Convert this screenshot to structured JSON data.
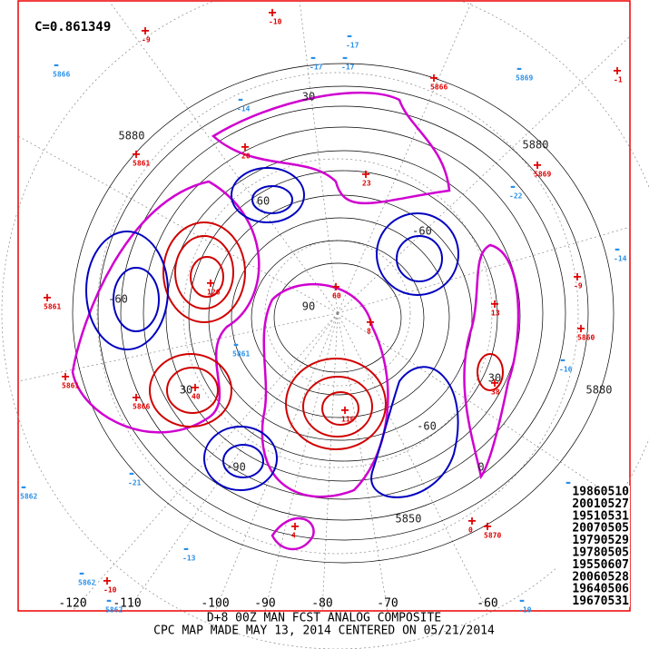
{
  "header": {
    "correlation": "C=0.861349"
  },
  "analog_dates": [
    "19860510",
    "20010527",
    "19510531",
    "20070505",
    "19790529",
    "19780505",
    "19550607",
    "20060528",
    "19640506",
    "19670531"
  ],
  "longitude_labels": [
    "-120",
    "-110",
    "-100",
    "-90",
    "-80",
    "-70",
    "-60"
  ],
  "contour_labels": [
    "5880",
    "5880",
    "5880",
    "5850",
    "30",
    "30",
    "60",
    "-60",
    "-60",
    "-60",
    "90",
    "-90",
    "0",
    "30"
  ],
  "anomaly_markers": [
    {
      "symbol": "+",
      "label": "-10"
    },
    {
      "symbol": "+",
      "label": "-9"
    },
    {
      "symbol": "-",
      "label": "5866"
    },
    {
      "symbol": "-",
      "label": "-17"
    },
    {
      "symbol": "-",
      "label": "-17"
    },
    {
      "symbol": "-",
      "label": "-17"
    },
    {
      "symbol": "+",
      "label": "5866"
    },
    {
      "symbol": "-",
      "label": "5869"
    },
    {
      "symbol": "+",
      "label": "-1"
    },
    {
      "symbol": "-",
      "label": "-14"
    },
    {
      "symbol": "+",
      "label": "5861"
    },
    {
      "symbol": "+",
      "label": "20"
    },
    {
      "symbol": "+",
      "label": "23"
    },
    {
      "symbol": "-",
      "label": "-22"
    },
    {
      "symbol": "+",
      "label": "5869"
    },
    {
      "symbol": "+",
      "label": "-9"
    },
    {
      "symbol": "-",
      "label": "-14"
    },
    {
      "symbol": "+",
      "label": "5861"
    },
    {
      "symbol": "+",
      "label": "126"
    },
    {
      "symbol": "+",
      "label": "60"
    },
    {
      "symbol": "+",
      "label": "8"
    },
    {
      "symbol": "+",
      "label": "13"
    },
    {
      "symbol": "+",
      "label": "5860"
    },
    {
      "symbol": "-",
      "label": "5861"
    },
    {
      "symbol": "-",
      "label": "-16"
    },
    {
      "symbol": "+",
      "label": "5861"
    },
    {
      "symbol": "+",
      "label": "5866"
    },
    {
      "symbol": "+",
      "label": "40"
    },
    {
      "symbol": "+",
      "label": "38"
    },
    {
      "symbol": "-",
      "label": "-21"
    },
    {
      "symbol": "-",
      "label": "5862"
    },
    {
      "symbol": "-",
      "label": "-16"
    },
    {
      "symbol": "+",
      "label": "116"
    },
    {
      "symbol": "+",
      "label": "4"
    },
    {
      "symbol": "+",
      "label": "0"
    },
    {
      "symbol": "+",
      "label": "5870"
    },
    {
      "symbol": "-",
      "label": "-13"
    },
    {
      "symbol": "+",
      "label": "-10"
    },
    {
      "symbol": "-",
      "label": "5862"
    },
    {
      "symbol": "-",
      "label": "-10"
    },
    {
      "symbol": "-",
      "label": "5862"
    }
  ],
  "footer": {
    "line1": "D+8 00Z MAN FCST ANALOG COMPOSITE",
    "line2": "CPC MAP MADE MAY 13, 2014 CENTERED ON 05/21/2014"
  }
}
